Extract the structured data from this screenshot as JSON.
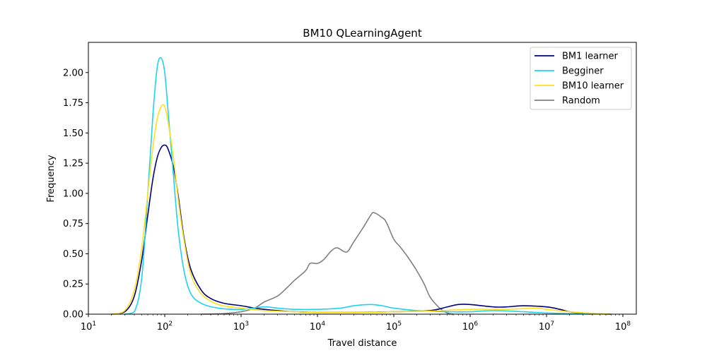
{
  "chart_data": {
    "type": "line",
    "title": "BM10 QLearningAgent",
    "xlabel": "Travel distance",
    "ylabel": "Frequency",
    "xscale": "log",
    "xlim": [
      10,
      150000000
    ],
    "ylim": [
      0,
      2.25
    ],
    "grid": false,
    "legend_position": "top-right",
    "x_ticks": [
      {
        "value": 10,
        "base": "10",
        "exp": "1"
      },
      {
        "value": 100,
        "base": "10",
        "exp": "2"
      },
      {
        "value": 1000,
        "base": "10",
        "exp": "3"
      },
      {
        "value": 10000,
        "base": "10",
        "exp": "4"
      },
      {
        "value": 100000,
        "base": "10",
        "exp": "5"
      },
      {
        "value": 1000000,
        "base": "10",
        "exp": "6"
      },
      {
        "value": 10000000,
        "base": "10",
        "exp": "7"
      },
      {
        "value": 100000000,
        "base": "10",
        "exp": "8"
      }
    ],
    "y_ticks": [
      {
        "value": 0,
        "label": "0.00"
      },
      {
        "value": 0.25,
        "label": "0.25"
      },
      {
        "value": 0.5,
        "label": "0.50"
      },
      {
        "value": 0.75,
        "label": "0.75"
      },
      {
        "value": 1.0,
        "label": "1.00"
      },
      {
        "value": 1.25,
        "label": "1.25"
      },
      {
        "value": 1.5,
        "label": "1.50"
      },
      {
        "value": 1.75,
        "label": "1.75"
      },
      {
        "value": 2.0,
        "label": "2.00"
      }
    ],
    "series": [
      {
        "name": "BM1 learner",
        "color": "#000080",
        "points": [
          [
            20,
            0
          ],
          [
            30,
            0.02
          ],
          [
            40,
            0.15
          ],
          [
            50,
            0.45
          ],
          [
            60,
            0.82
          ],
          [
            70,
            1.12
          ],
          [
            80,
            1.3
          ],
          [
            90,
            1.38
          ],
          [
            100,
            1.4
          ],
          [
            110,
            1.37
          ],
          [
            130,
            1.22
          ],
          [
            150,
            0.98
          ],
          [
            180,
            0.62
          ],
          [
            220,
            0.37
          ],
          [
            300,
            0.2
          ],
          [
            400,
            0.13
          ],
          [
            600,
            0.09
          ],
          [
            1000,
            0.07
          ],
          [
            1500,
            0.05
          ],
          [
            2000,
            0.04
          ],
          [
            3000,
            0.03
          ],
          [
            5000,
            0.02
          ],
          [
            10000,
            0.015
          ],
          [
            30000,
            0.015
          ],
          [
            100000,
            0.02
          ],
          [
            300000,
            0.03
          ],
          [
            500000,
            0.06
          ],
          [
            700000,
            0.08
          ],
          [
            1000000,
            0.08
          ],
          [
            2000000,
            0.06
          ],
          [
            3000000,
            0.06
          ],
          [
            5000000,
            0.07
          ],
          [
            10000000,
            0.06
          ],
          [
            15000000,
            0.04
          ],
          [
            20000000,
            0.02
          ],
          [
            30000000,
            0.01
          ],
          [
            50000000,
            0.003
          ],
          [
            70000000,
            0
          ]
        ]
      },
      {
        "name": "Begginer",
        "color": "#1ed2f4",
        "points": [
          [
            30,
            0
          ],
          [
            40,
            0.02
          ],
          [
            50,
            0.3
          ],
          [
            60,
            1.0
          ],
          [
            70,
            1.65
          ],
          [
            80,
            2.05
          ],
          [
            90,
            2.12
          ],
          [
            100,
            2.0
          ],
          [
            110,
            1.7
          ],
          [
            130,
            1.15
          ],
          [
            150,
            0.7
          ],
          [
            180,
            0.35
          ],
          [
            220,
            0.17
          ],
          [
            300,
            0.09
          ],
          [
            500,
            0.05
          ],
          [
            1000,
            0.04
          ],
          [
            2000,
            0.06
          ],
          [
            3000,
            0.05
          ],
          [
            5000,
            0.04
          ],
          [
            10000,
            0.04
          ],
          [
            20000,
            0.05
          ],
          [
            30000,
            0.07
          ],
          [
            50000,
            0.08
          ],
          [
            70000,
            0.07
          ],
          [
            100000,
            0.05
          ],
          [
            200000,
            0.03
          ],
          [
            500000,
            0.02
          ],
          [
            1000000,
            0.02
          ],
          [
            2000000,
            0.03
          ],
          [
            5000000,
            0.02
          ],
          [
            10000000,
            0.01
          ],
          [
            20000000,
            0.005
          ],
          [
            40000000,
            0
          ]
        ]
      },
      {
        "name": "BM10 learner",
        "color": "#ffe119",
        "points": [
          [
            20,
            0
          ],
          [
            30,
            0.03
          ],
          [
            40,
            0.2
          ],
          [
            50,
            0.55
          ],
          [
            60,
            1.0
          ],
          [
            70,
            1.38
          ],
          [
            80,
            1.62
          ],
          [
            90,
            1.72
          ],
          [
            100,
            1.72
          ],
          [
            110,
            1.6
          ],
          [
            130,
            1.3
          ],
          [
            150,
            0.95
          ],
          [
            180,
            0.6
          ],
          [
            220,
            0.33
          ],
          [
            300,
            0.17
          ],
          [
            500,
            0.08
          ],
          [
            1000,
            0.05
          ],
          [
            2000,
            0.03
          ],
          [
            5000,
            0.02
          ],
          [
            10000,
            0.015
          ],
          [
            50000,
            0.015
          ],
          [
            100000,
            0.02
          ],
          [
            300000,
            0.025
          ],
          [
            1000000,
            0.04
          ],
          [
            3000000,
            0.04
          ],
          [
            7000000,
            0.05
          ],
          [
            10000000,
            0.04
          ],
          [
            20000000,
            0.02
          ],
          [
            40000000,
            0.007
          ],
          [
            70000000,
            0
          ]
        ]
      },
      {
        "name": "Random",
        "color": "#808080",
        "points": [
          [
            300,
            0
          ],
          [
            600,
            0.005
          ],
          [
            1000,
            0.02
          ],
          [
            1500,
            0.05
          ],
          [
            2000,
            0.1
          ],
          [
            3000,
            0.15
          ],
          [
            4000,
            0.22
          ],
          [
            5000,
            0.28
          ],
          [
            7000,
            0.36
          ],
          [
            8000,
            0.42
          ],
          [
            10000,
            0.42
          ],
          [
            12000,
            0.45
          ],
          [
            15000,
            0.52
          ],
          [
            18000,
            0.55
          ],
          [
            22000,
            0.52
          ],
          [
            25000,
            0.52
          ],
          [
            30000,
            0.6
          ],
          [
            40000,
            0.72
          ],
          [
            50000,
            0.82
          ],
          [
            55000,
            0.84
          ],
          [
            70000,
            0.8
          ],
          [
            80000,
            0.76
          ],
          [
            100000,
            0.62
          ],
          [
            120000,
            0.56
          ],
          [
            150000,
            0.48
          ],
          [
            200000,
            0.36
          ],
          [
            250000,
            0.25
          ],
          [
            300000,
            0.14
          ],
          [
            400000,
            0.05
          ],
          [
            500000,
            0.01
          ],
          [
            600000,
            0
          ]
        ]
      }
    ]
  }
}
